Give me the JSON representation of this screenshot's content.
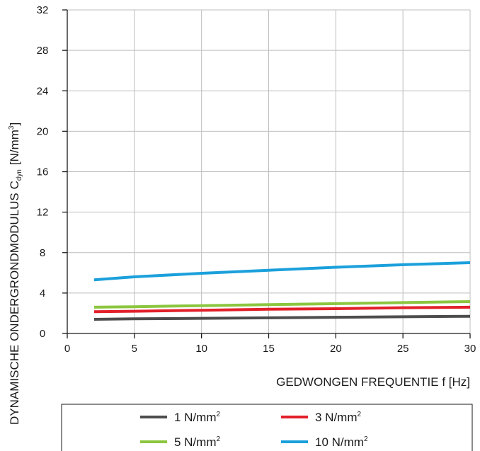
{
  "chart_data": {
    "type": "line",
    "xlabel": "GEDWONGEN FREQUENTIE f [Hz]",
    "ylabel": {
      "main": "DYNAMISCHE ONDERGRONDMODULUS C",
      "subscript": "dyn",
      "unit_prefix": "[N/mm",
      "unit_exponent": "3",
      "unit_suffix": "]"
    },
    "xlim": [
      0,
      30
    ],
    "ylim": [
      0,
      32
    ],
    "xticks": [
      0,
      5,
      10,
      15,
      20,
      25,
      30
    ],
    "yticks": [
      0,
      4,
      8,
      12,
      16,
      20,
      24,
      28,
      32
    ],
    "grid": true,
    "legend_position": "bottom",
    "series": [
      {
        "name": "1 N/mm",
        "name_sup": "2",
        "color": "#4d4d4d",
        "x": [
          2,
          5,
          10,
          15,
          20,
          25,
          30
        ],
        "y": [
          1.4,
          1.45,
          1.5,
          1.55,
          1.6,
          1.65,
          1.7
        ]
      },
      {
        "name": "3 N/mm",
        "name_sup": "2",
        "color": "#e2202a",
        "x": [
          2,
          5,
          10,
          15,
          20,
          25,
          30
        ],
        "y": [
          2.15,
          2.2,
          2.3,
          2.4,
          2.45,
          2.55,
          2.6
        ]
      },
      {
        "name": "5 N/mm",
        "name_sup": "2",
        "color": "#8cc63f",
        "x": [
          2,
          5,
          10,
          15,
          20,
          25,
          30
        ],
        "y": [
          2.6,
          2.65,
          2.75,
          2.85,
          2.95,
          3.05,
          3.15
        ]
      },
      {
        "name": "10 N/mm",
        "name_sup": "2",
        "color": "#1ba0db",
        "x": [
          2,
          5,
          10,
          15,
          20,
          25,
          30
        ],
        "y": [
          5.3,
          5.6,
          5.95,
          6.25,
          6.55,
          6.8,
          7.0
        ]
      }
    ]
  }
}
